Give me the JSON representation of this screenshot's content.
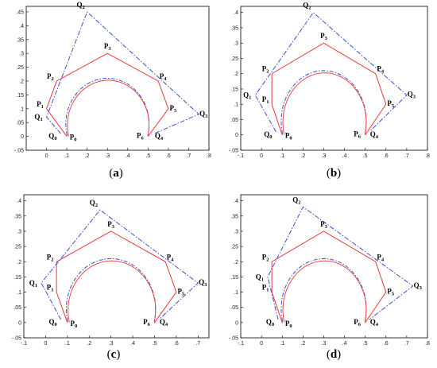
{
  "colors": {
    "control_polygon_P": "#e8383a",
    "control_polygon_Q": "#3a4fd8",
    "curve_red": "#e8383a",
    "curve_blue": "#3a4fd8",
    "axes": "#000000"
  },
  "chart_data": [
    {
      "type": "line",
      "caption": "(a)",
      "xlim": [
        -0.1,
        0.8
      ],
      "ylim": [
        -0.05,
        0.47
      ],
      "xticks": [
        0,
        0.1,
        0.2,
        0.3,
        0.4,
        0.5,
        0.6,
        0.7,
        0.8
      ],
      "yticks": [
        -0.05,
        0,
        0.05,
        0.1,
        0.15,
        0.2,
        0.25,
        0.3,
        0.35,
        0.4,
        0.45
      ],
      "P_labels": [
        "P0",
        "P1",
        "P2",
        "P3",
        "P4",
        "P5",
        "P6"
      ],
      "P": [
        [
          0.1,
          0
        ],
        [
          0,
          0.1
        ],
        [
          0.05,
          0.2
        ],
        [
          0.3,
          0.3
        ],
        [
          0.55,
          0.2
        ],
        [
          0.6,
          0.1
        ],
        [
          0.5,
          0
        ]
      ],
      "Q_labels": [
        "Q0",
        "Q1",
        "Q2",
        "Q3",
        "Q4"
      ],
      "Q": [
        [
          0.07,
          0.01
        ],
        [
          0,
          0.07
        ],
        [
          0.2,
          0.45
        ],
        [
          0.75,
          0.08
        ],
        [
          0.53,
          0.01
        ]
      ],
      "arc": {
        "center": [
          0.3,
          0.045
        ],
        "rx": 0.205,
        "ry": 0.165
      }
    },
    {
      "type": "line",
      "caption": "(b)",
      "xlim": [
        -0.1,
        0.8
      ],
      "ylim": [
        -0.05,
        0.42
      ],
      "xticks": [
        -0.1,
        0,
        0.1,
        0.2,
        0.3,
        0.4,
        0.5,
        0.6,
        0.7,
        0.8
      ],
      "yticks": [
        -0.05,
        0,
        0.05,
        0.1,
        0.15,
        0.2,
        0.25,
        0.3,
        0.35,
        0.4
      ],
      "P_labels": [
        "P0",
        "P1",
        "P2",
        "P3",
        "P4",
        "P5",
        "P6"
      ],
      "P": [
        [
          0.1,
          0
        ],
        [
          0.05,
          0.1
        ],
        [
          0.05,
          0.2
        ],
        [
          0.3,
          0.3
        ],
        [
          0.55,
          0.2
        ],
        [
          0.6,
          0.1
        ],
        [
          0.5,
          0
        ]
      ],
      "Q_labels": [
        "Q0",
        "Q1",
        "Q2",
        "Q3",
        "Q4"
      ],
      "Q": [
        [
          0.07,
          0.01
        ],
        [
          -0.03,
          0.13
        ],
        [
          0.25,
          0.4
        ],
        [
          0.7,
          0.13
        ],
        [
          0.52,
          0.01
        ]
      ],
      "arc": {
        "center": [
          0.3,
          0.045
        ],
        "rx": 0.205,
        "ry": 0.165
      }
    },
    {
      "type": "line",
      "caption": "(c)",
      "xlim": [
        -0.1,
        0.75
      ],
      "ylim": [
        -0.05,
        0.42
      ],
      "xticks": [
        -0.1,
        0,
        0.1,
        0.2,
        0.3,
        0.4,
        0.5,
        0.6,
        0.7
      ],
      "yticks": [
        -0.05,
        0,
        0.05,
        0.1,
        0.15,
        0.2,
        0.25,
        0.3,
        0.35,
        0.4
      ],
      "P_labels": [
        "P0",
        "P1",
        "P2",
        "P3",
        "P4",
        "P5",
        "P6"
      ],
      "P": [
        [
          0.1,
          0
        ],
        [
          0.05,
          0.1
        ],
        [
          0.05,
          0.2
        ],
        [
          0.3,
          0.3
        ],
        [
          0.55,
          0.2
        ],
        [
          0.6,
          0.1
        ],
        [
          0.5,
          0
        ]
      ],
      "Q_labels": [
        "Q0",
        "Q1",
        "Q2",
        "Q3",
        "Q4"
      ],
      "Q": [
        [
          0.07,
          0.01
        ],
        [
          -0.02,
          0.13
        ],
        [
          0.25,
          0.37
        ],
        [
          0.7,
          0.13
        ],
        [
          0.52,
          0.01
        ]
      ],
      "arc": {
        "center": [
          0.3,
          0.045
        ],
        "rx": 0.205,
        "ry": 0.165
      }
    },
    {
      "type": "line",
      "caption": "(d)",
      "xlim": [
        -0.1,
        0.8
      ],
      "ylim": [
        -0.05,
        0.42
      ],
      "xticks": [
        -0.1,
        0,
        0.1,
        0.2,
        0.3,
        0.4,
        0.5,
        0.6,
        0.7,
        0.8
      ],
      "yticks": [
        -0.05,
        0,
        0.05,
        0.1,
        0.15,
        0.2,
        0.25,
        0.3,
        0.35,
        0.4
      ],
      "P_labels": [
        "P0",
        "P1",
        "P2",
        "P3",
        "P4",
        "P5",
        "P6"
      ],
      "P": [
        [
          0.1,
          0
        ],
        [
          0.05,
          0.1
        ],
        [
          0.05,
          0.2
        ],
        [
          0.3,
          0.3
        ],
        [
          0.55,
          0.2
        ],
        [
          0.6,
          0.1
        ],
        [
          0.5,
          0
        ]
      ],
      "Q_labels": [
        "Q0",
        "Q1",
        "Q2",
        "Q3",
        "Q4"
      ],
      "Q": [
        [
          0.08,
          0.01
        ],
        [
          0.03,
          0.15
        ],
        [
          0.2,
          0.38
        ],
        [
          0.73,
          0.12
        ],
        [
          0.52,
          0.01
        ]
      ],
      "arc": {
        "center": [
          0.3,
          0.045
        ],
        "rx": 0.205,
        "ry": 0.165
      }
    }
  ]
}
